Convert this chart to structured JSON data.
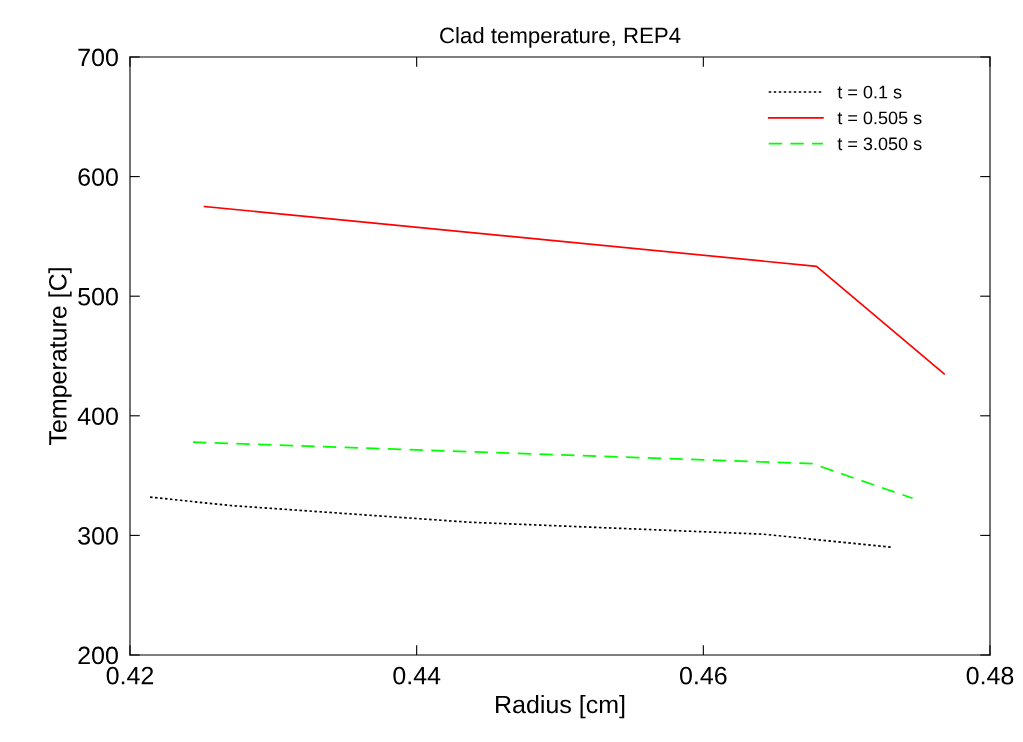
{
  "chart_data": {
    "type": "line",
    "title": "Clad temperature, REP4",
    "xlabel": "Radius [cm]",
    "ylabel": "Temperature [C]",
    "xlim": [
      0.42,
      0.48
    ],
    "xticks": [
      0.42,
      0.44,
      0.46,
      0.48
    ],
    "ylim": [
      200,
      700
    ],
    "yticks": [
      200,
      300,
      400,
      500,
      600,
      700
    ],
    "grid": false,
    "legend": "top right",
    "marker": "none",
    "series": [
      {
        "name": "t = 0.1 s",
        "color": "#000000",
        "line_style": "dotted",
        "x": [
          0.4214,
          0.427,
          0.4437,
          0.4642,
          0.4732
        ],
        "values": [
          332,
          325,
          311,
          301,
          290
        ]
      },
      {
        "name": "t = 0.505 s",
        "color": "#ff0000",
        "line_style": "solid",
        "x": [
          0.4252,
          0.4679,
          0.4768
        ],
        "values": [
          575,
          525,
          435
        ]
      },
      {
        "name": "t = 3.050 s",
        "color": "#00ff00",
        "line_style": "dashed",
        "x": [
          0.4244,
          0.4676,
          0.4746
        ],
        "values": [
          378,
          360,
          331
        ]
      }
    ]
  }
}
